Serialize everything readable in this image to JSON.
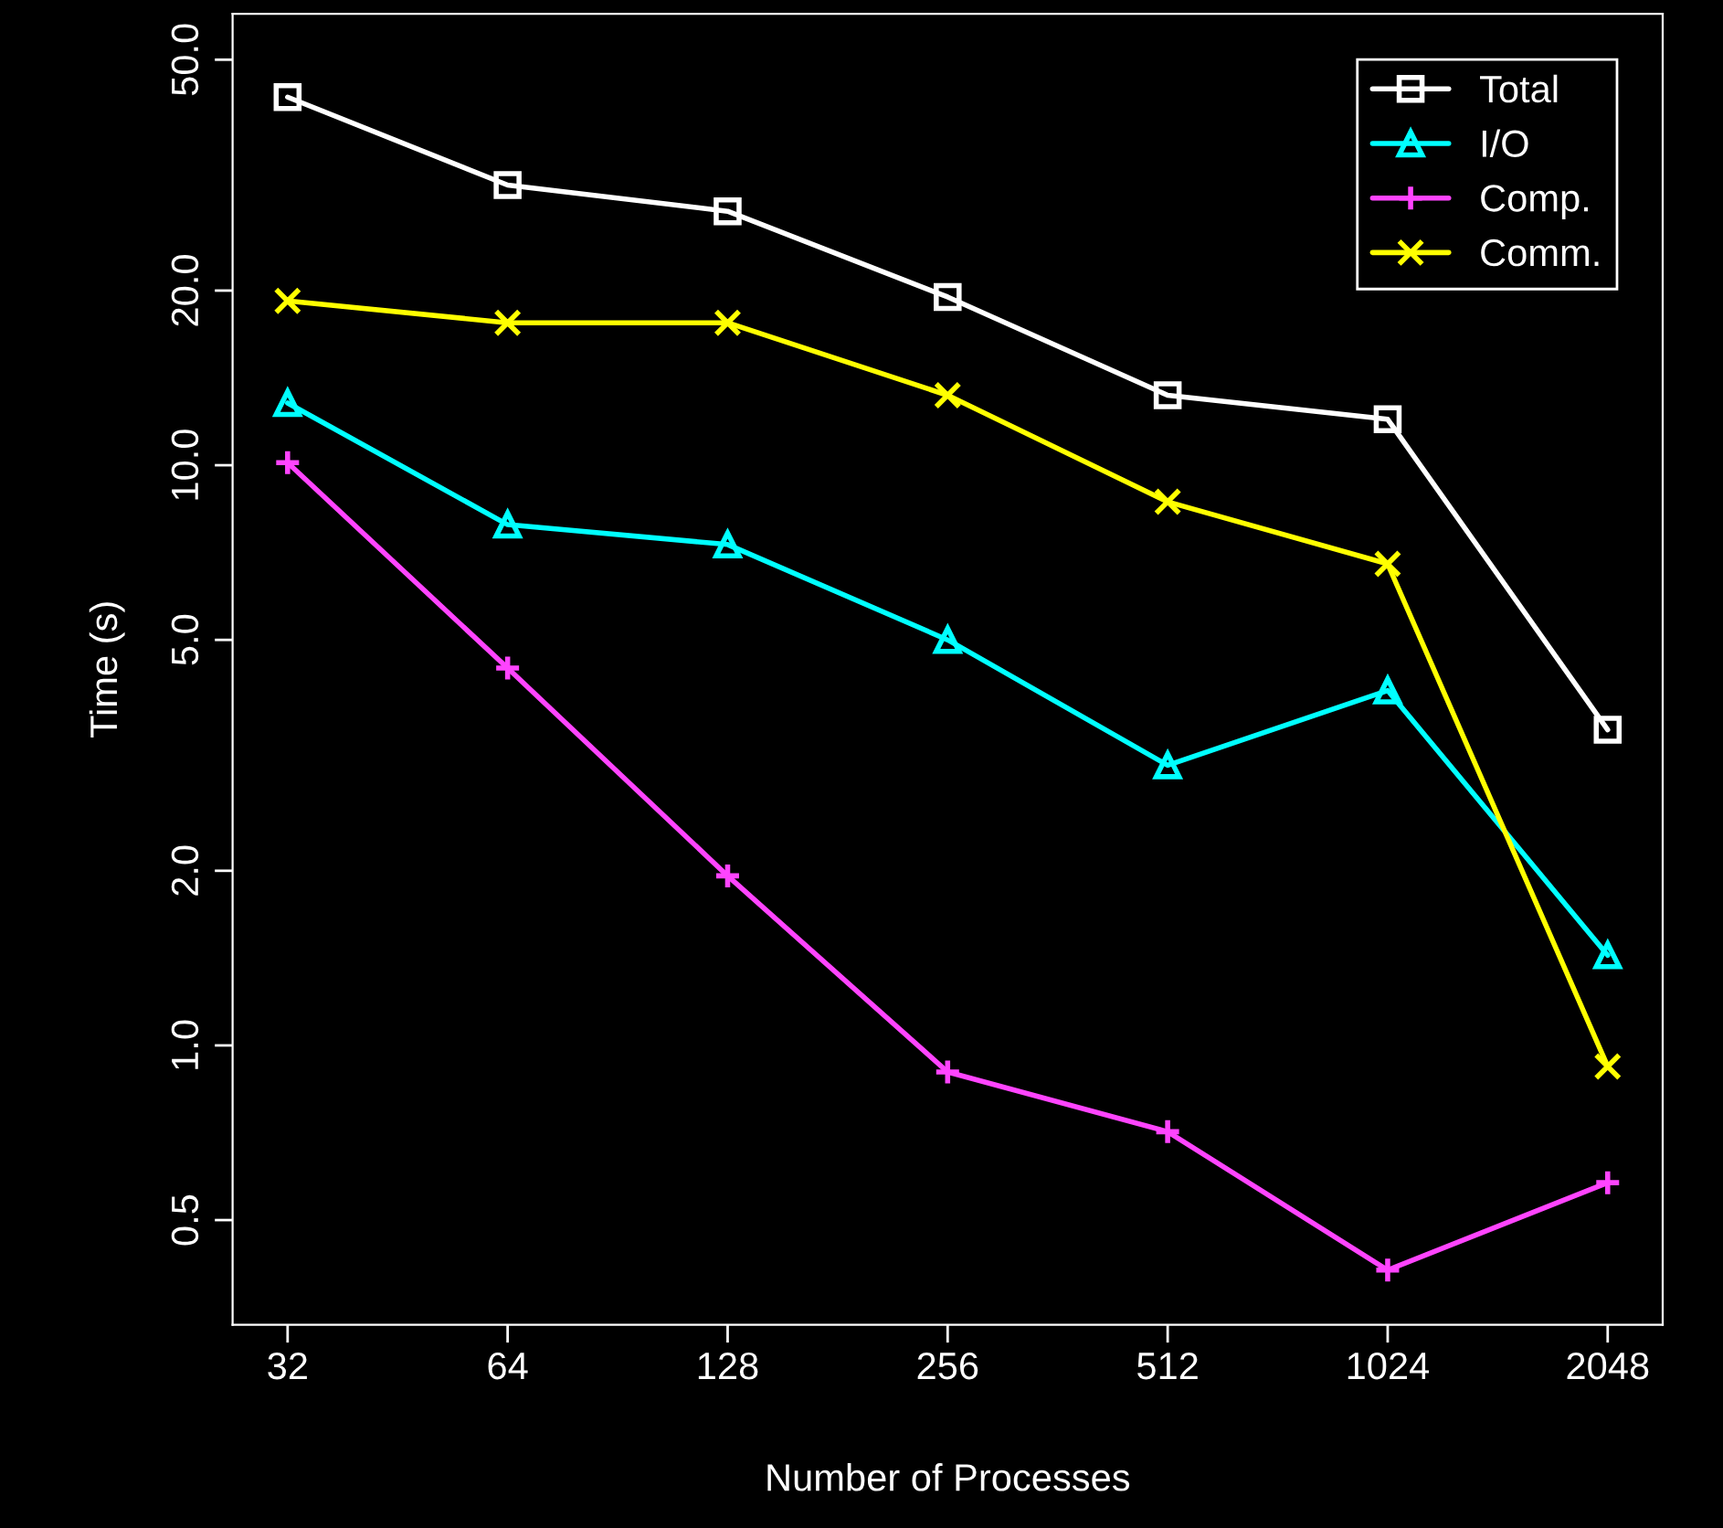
{
  "chart_data": {
    "type": "line",
    "xlabel": "Number of Processes",
    "ylabel": "Time (s)",
    "categories": [
      "32",
      "64",
      "128",
      "256",
      "512",
      "1024",
      "2048"
    ],
    "log": "y",
    "ylim": [
      0.33,
      60
    ],
    "yticks": [
      {
        "value": 0.5,
        "label": "0.5"
      },
      {
        "value": 1,
        "label": "1.0"
      },
      {
        "value": 2,
        "label": "2.0"
      },
      {
        "value": 5,
        "label": "5.0"
      },
      {
        "value": 10,
        "label": "10.0"
      },
      {
        "value": 20,
        "label": "20.0"
      },
      {
        "value": 50,
        "label": "50.0"
      }
    ],
    "grid": false,
    "legend": "top right",
    "line_style": "solid",
    "series": [
      {
        "name": "Total",
        "color": "#ffffff",
        "marker": "square",
        "values": [
          43.1,
          30.4,
          27.4,
          19.5,
          13.2,
          12.0,
          3.5
        ]
      },
      {
        "name": "I/O",
        "color": "#00ffff",
        "marker": "triangle",
        "values": [
          12.8,
          7.9,
          7.3,
          5.0,
          3.04,
          4.09,
          1.43
        ]
      },
      {
        "name": "Comp.",
        "color": "#ff44ff",
        "marker": "plus",
        "values": [
          10.1,
          4.47,
          1.96,
          0.9,
          0.71,
          0.41,
          0.58
        ]
      },
      {
        "name": "Comm.",
        "color": "#ffff00",
        "marker": "cross",
        "values": [
          19.2,
          17.6,
          17.6,
          13.2,
          8.65,
          6.76,
          0.92
        ]
      }
    ]
  }
}
